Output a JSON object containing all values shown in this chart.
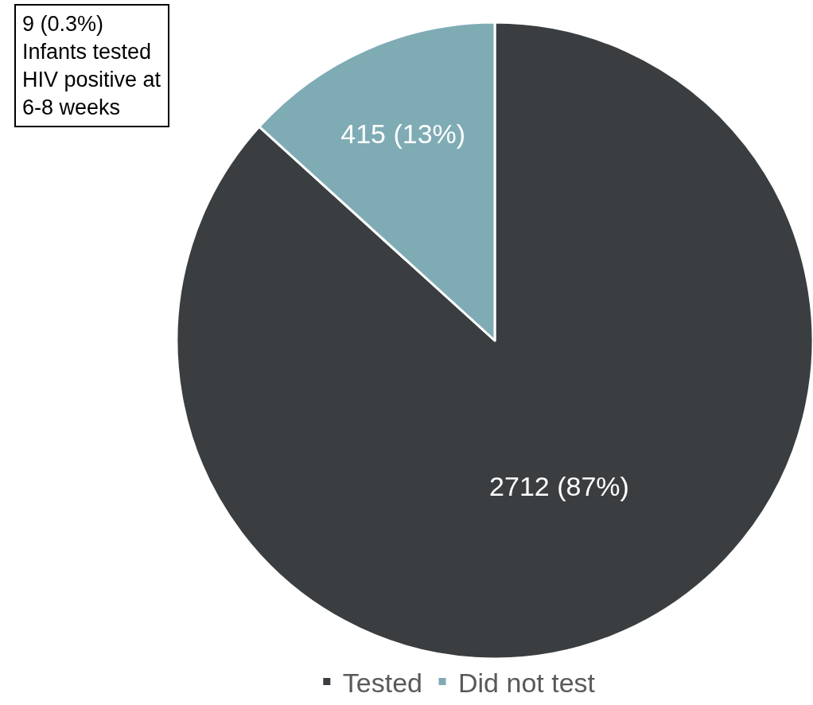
{
  "chart_data": {
    "type": "pie",
    "categories": [
      "Tested",
      "Did not test"
    ],
    "values": [
      2712,
      415
    ],
    "value_labels": [
      "2712 (87%)",
      "415 (13%)"
    ],
    "colors": [
      "#3b3e40",
      "#7fabb5"
    ],
    "annotations": [
      "9 (0.3%)\nInfants tested\nHIV positive at\n6-8 weeks"
    ],
    "legend": "bottom"
  }
}
